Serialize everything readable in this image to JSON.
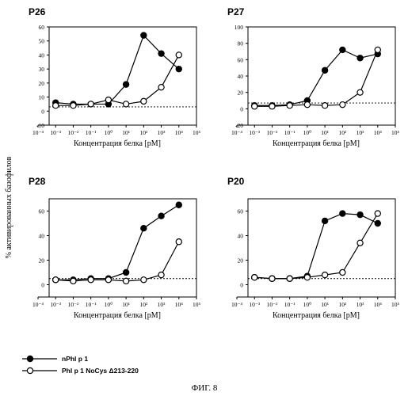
{
  "figure_caption": "ФИГ. 8",
  "y_axis_label": "% активированных базофилов",
  "legend": [
    {
      "label": "nPhl p 1",
      "marker": "filled-circle"
    },
    {
      "label": "Phl p 1 NoCys Δ213-220",
      "marker": "open-circle"
    }
  ],
  "colors": {
    "line": "#000000",
    "filled": "#000000",
    "open": "#ffffff"
  },
  "chart_data": [
    {
      "type": "line",
      "title": "P26",
      "xlabel": "Концентрация белка [pM]",
      "x_scale": "log",
      "x_ticks": [
        "10⁻⁴",
        "10⁻³",
        "10⁻²",
        "10⁻¹",
        "10⁰",
        "10¹",
        "10²",
        "10³",
        "10⁴",
        "10⁵"
      ],
      "ylim": [
        -10,
        60
      ],
      "y_ticks": [
        "-10",
        "0",
        "10",
        "20",
        "30",
        "40",
        "50",
        "60"
      ],
      "baseline": 3,
      "series": [
        {
          "name": "nPhl p 1",
          "marker": "filled",
          "x": [
            0.001,
            0.01,
            0.1,
            1,
            10,
            100,
            1000,
            10000
          ],
          "y": [
            6,
            5,
            5,
            5,
            19,
            54,
            41,
            30
          ]
        },
        {
          "name": "Phl p 1 NoCys Δ213-220",
          "marker": "open",
          "x": [
            0.001,
            0.01,
            0.1,
            1,
            10,
            100,
            1000,
            10000
          ],
          "y": [
            4,
            4,
            5,
            8,
            5,
            7,
            17,
            40
          ]
        }
      ]
    },
    {
      "type": "line",
      "title": "P27",
      "xlabel": "Концентрация белка [pM]",
      "x_scale": "log",
      "x_ticks": [
        "10⁻⁴",
        "10⁻³",
        "10⁻²",
        "10⁻¹",
        "10⁰",
        "10¹",
        "10²",
        "10³",
        "10⁴",
        "10⁵"
      ],
      "ylim": [
        -20,
        100
      ],
      "y_ticks": [
        "-20",
        "0",
        "20",
        "40",
        "60",
        "80",
        "100"
      ],
      "baseline": 7,
      "series": [
        {
          "name": "nPhl p 1",
          "marker": "filled",
          "x": [
            0.001,
            0.01,
            0.1,
            1,
            10,
            100,
            1000,
            10000
          ],
          "y": [
            4,
            4,
            5,
            10,
            47,
            72,
            62,
            67
          ]
        },
        {
          "name": "Phl p 1 NoCys Δ213-220",
          "marker": "open",
          "x": [
            0.001,
            0.01,
            0.1,
            1,
            10,
            100,
            1000,
            10000
          ],
          "y": [
            3,
            3,
            4,
            5,
            4,
            5,
            20,
            72
          ]
        }
      ]
    },
    {
      "type": "line",
      "title": "P28",
      "xlabel": "Концентрация белка [pM]",
      "x_scale": "log",
      "x_ticks": [
        "10⁻⁴",
        "10⁻³",
        "10⁻²",
        "10⁻¹",
        "10⁰",
        "10¹",
        "10²",
        "10³",
        "10⁴",
        "10⁵"
      ],
      "ylim": [
        -10,
        70
      ],
      "y_ticks": [
        "0",
        "20",
        "40",
        "60"
      ],
      "baseline": 5,
      "series": [
        {
          "name": "nPhl p 1",
          "marker": "filled",
          "x": [
            0.001,
            0.01,
            0.1,
            1,
            10,
            100,
            1000,
            10000
          ],
          "y": [
            4,
            4,
            5,
            5,
            10,
            46,
            56,
            65
          ]
        },
        {
          "name": "Phl p 1 NoCys Δ213-220",
          "marker": "open",
          "x": [
            0.001,
            0.01,
            0.1,
            1,
            10,
            100,
            1000,
            10000
          ],
          "y": [
            4,
            3,
            4,
            4,
            3,
            4,
            8,
            35
          ]
        }
      ]
    },
    {
      "type": "line",
      "title": "P20",
      "xlabel": "Концентрация белка [pM]",
      "x_scale": "log",
      "x_ticks": [
        "10⁻⁴",
        "10⁻³",
        "10⁻²",
        "10⁻¹",
        "10⁰",
        "10¹",
        "10²",
        "10³",
        "10⁴",
        "10⁵"
      ],
      "ylim": [
        -10,
        70
      ],
      "y_ticks": [
        "0",
        "20",
        "40",
        "60"
      ],
      "baseline": 5,
      "series": [
        {
          "name": "nPhl p 1",
          "marker": "filled",
          "x": [
            0.001,
            0.01,
            0.1,
            1,
            10,
            100,
            1000,
            10000
          ],
          "y": [
            6,
            5,
            5,
            7,
            52,
            58,
            57,
            50
          ]
        },
        {
          "name": "Phl p 1 NoCys Δ213-220",
          "marker": "open",
          "x": [
            0.001,
            0.01,
            0.1,
            1,
            10,
            100,
            1000,
            10000
          ],
          "y": [
            6,
            5,
            5,
            6,
            8,
            10,
            34,
            58
          ]
        }
      ]
    }
  ]
}
